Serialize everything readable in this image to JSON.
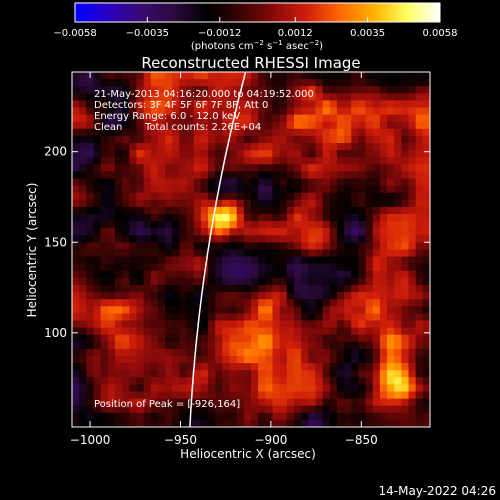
{
  "chart_data": {
    "type": "heatmap",
    "title": "Reconstructed RHESSI Image",
    "xlabel": "Heliocentric X (arcsec)",
    "ylabel": "Heliocentric Y (arcsec)",
    "xlim": [
      -1010,
      -812
    ],
    "ylim": [
      48,
      244
    ],
    "xticks": [
      -1000,
      -950,
      -900,
      -850
    ],
    "xtick_labels": [
      "−1000",
      "−950",
      "−900",
      "−850"
    ],
    "yticks": [
      100,
      150,
      200
    ],
    "ytick_labels": [
      "100",
      "150",
      "200"
    ],
    "colorbar": {
      "range": [
        -0.0058,
        0.0058
      ],
      "ticks": [
        -0.0058,
        -0.0035,
        -0.0012,
        0.0012,
        0.0035,
        0.0058
      ],
      "tick_labels": [
        "−0.0058",
        "−0.0035",
        "−0.0012",
        "0.0012",
        "0.0035",
        "0.0058"
      ],
      "units_prefix": "(photons cm",
      "units_exp1": "−2",
      "units_mid": " s",
      "units_exp2": "−1",
      "units_mid2": " asec",
      "units_exp3": "−2",
      "units_suffix": ")",
      "colormap": [
        "#0000ff",
        "#2a00c0",
        "#3a0a70",
        "#2a0a3a",
        "#000000",
        "#3a0404",
        "#8b0a0a",
        "#d01e0a",
        "#ff6a00",
        "#ffb000",
        "#ffff60",
        "#ffffff"
      ]
    },
    "sources": [
      {
        "x": -926,
        "y": 164,
        "peak": 0.0058
      },
      {
        "x": -832,
        "y": 72,
        "peak": 0.0045
      }
    ],
    "grid": false,
    "legend": "none"
  },
  "annotations": {
    "time_range": "21-May-2013 04:16:20.000 to 04:19:52.000",
    "detectors": "Detectors: 3F 4F 5F 6F 7F 8F, Att 0",
    "energy": "Energy Range: 6.0 - 12.0 keV",
    "method": "Clean",
    "counts": "Total counts: 2.26E+04",
    "peak_position": "Position of Peak = [-926,164]"
  },
  "footer": {
    "timestamp": "14-May-2022 04:26"
  }
}
